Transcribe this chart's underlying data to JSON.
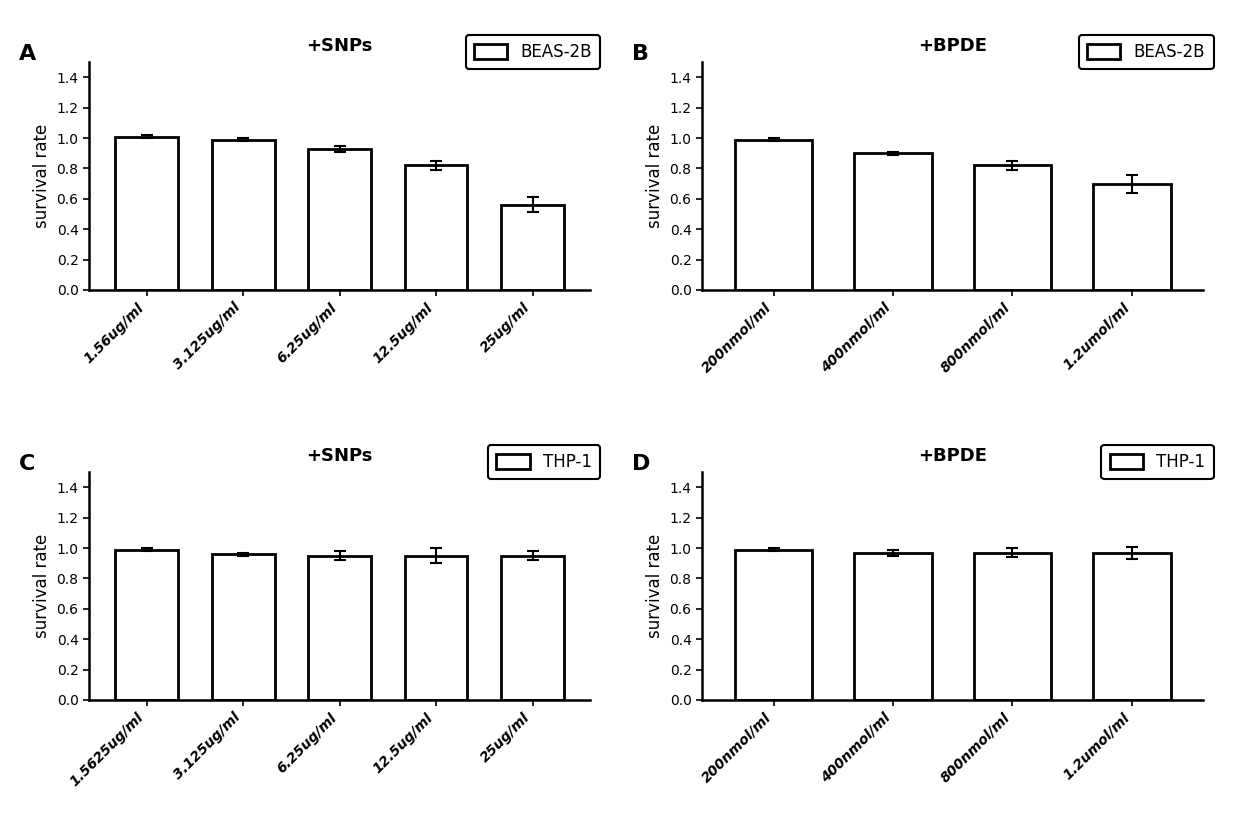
{
  "panel_A": {
    "title": "+SNPs",
    "label": "A",
    "legend_label": "BEAS-2B",
    "categories": [
      "1.56ug/ml",
      "3.125ug/ml",
      "6.25ug/ml",
      "12.5ug/ml",
      "25ug/ml"
    ],
    "values": [
      1.01,
      0.99,
      0.93,
      0.82,
      0.56
    ],
    "errors": [
      0.01,
      0.01,
      0.02,
      0.03,
      0.05
    ]
  },
  "panel_B": {
    "title": "+BPDE",
    "label": "B",
    "legend_label": "BEAS-2B",
    "categories": [
      "200nmol/ml",
      "400nmol/ml",
      "800nmol/ml",
      "1.2umol/ml"
    ],
    "values": [
      0.99,
      0.9,
      0.82,
      0.7
    ],
    "errors": [
      0.01,
      0.01,
      0.03,
      0.06
    ]
  },
  "panel_C": {
    "title": "+SNPs",
    "label": "C",
    "legend_label": "THP-1",
    "categories": [
      "1.5625ug/ml",
      "3.125ug/ml",
      "6.25ug/ml",
      "12.5ug/ml",
      "25ug/ml"
    ],
    "values": [
      0.99,
      0.96,
      0.95,
      0.95,
      0.95
    ],
    "errors": [
      0.01,
      0.01,
      0.03,
      0.05,
      0.03
    ]
  },
  "panel_D": {
    "title": "+BPDE",
    "label": "D",
    "legend_label": "THP-1",
    "categories": [
      "200nmol/ml",
      "400nmol/ml",
      "800nmol/ml",
      "1.2umol/ml"
    ],
    "values": [
      0.99,
      0.97,
      0.97,
      0.97
    ],
    "errors": [
      0.01,
      0.02,
      0.03,
      0.04
    ]
  },
  "ylabel": "survival rate",
  "ylim": [
    0,
    1.5
  ],
  "yticks": [
    0.0,
    0.2,
    0.4,
    0.6,
    0.8,
    1.0,
    1.2,
    1.4
  ],
  "bar_color": "#ffffff",
  "bar_edgecolor": "#000000",
  "bar_linewidth": 2.0,
  "bar_width": 0.65,
  "capsize": 4,
  "error_linewidth": 1.5,
  "background_color": "#ffffff",
  "label_fontsize": 16,
  "title_fontsize": 13,
  "tick_fontsize": 10,
  "ylabel_fontsize": 12,
  "legend_fontsize": 12
}
